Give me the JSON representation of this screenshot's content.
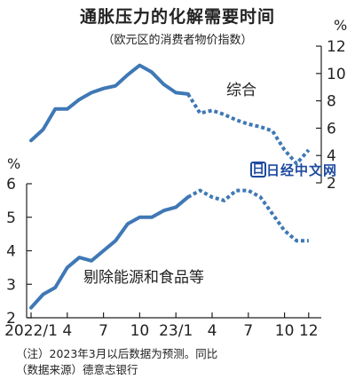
{
  "title": "通胀压力的化解需要时间",
  "subtitle": "（欧元区的消费者物价指数）",
  "notes": [
    "（注）2023年3月以后数据为预测。同比",
    "（数据来源）德意志银行"
  ],
  "watermark": {
    "text": "日经中文网",
    "icon": "日"
  },
  "colors": {
    "series": "#3f78b5",
    "axis": "#222222"
  },
  "chart_data": [
    {
      "type": "line",
      "ylabel": "%",
      "ylim": [
        2,
        12
      ],
      "yticks": [
        2,
        4,
        6,
        8,
        10,
        12
      ],
      "y_axis_side": "right",
      "grid": false,
      "series": [
        {
          "name": "综合",
          "actual": [
            {
              "x": "2022/1",
              "y": 5.1
            },
            {
              "x": "2022/2",
              "y": 5.9
            },
            {
              "x": "2022/3",
              "y": 7.4
            },
            {
              "x": "2022/4",
              "y": 7.4
            },
            {
              "x": "2022/5",
              "y": 8.1
            },
            {
              "x": "2022/6",
              "y": 8.6
            },
            {
              "x": "2022/7",
              "y": 8.9
            },
            {
              "x": "2022/8",
              "y": 9.1
            },
            {
              "x": "2022/9",
              "y": 9.9
            },
            {
              "x": "2022/10",
              "y": 10.6
            },
            {
              "x": "2022/11",
              "y": 10.1
            },
            {
              "x": "2022/12",
              "y": 9.2
            },
            {
              "x": "2023/1",
              "y": 8.6
            },
            {
              "x": "2023/2",
              "y": 8.5
            }
          ],
          "forecast": [
            {
              "x": "2023/2",
              "y": 8.5
            },
            {
              "x": "2023/3",
              "y": 7.1
            },
            {
              "x": "2023/4",
              "y": 7.3
            },
            {
              "x": "2023/5",
              "y": 7.0
            },
            {
              "x": "2023/6",
              "y": 6.6
            },
            {
              "x": "2023/7",
              "y": 6.3
            },
            {
              "x": "2023/8",
              "y": 6.1
            },
            {
              "x": "2023/9",
              "y": 5.8
            },
            {
              "x": "2023/10",
              "y": 4.4
            },
            {
              "x": "2023/11",
              "y": 3.4
            },
            {
              "x": "2023/12",
              "y": 4.4
            }
          ]
        }
      ]
    },
    {
      "type": "line",
      "ylabel": "%",
      "ylim": [
        2,
        6
      ],
      "yticks": [
        2,
        3,
        4,
        5,
        6
      ],
      "y_axis_side": "left",
      "grid": false,
      "xticks": [
        "2022/1",
        "4",
        "7",
        "10",
        "23/1",
        "4",
        "7",
        "10",
        "12"
      ],
      "series": [
        {
          "name": "剔除能源和食品等",
          "actual": [
            {
              "x": "2022/1",
              "y": 2.3
            },
            {
              "x": "2022/2",
              "y": 2.7
            },
            {
              "x": "2022/3",
              "y": 2.9
            },
            {
              "x": "2022/4",
              "y": 3.5
            },
            {
              "x": "2022/5",
              "y": 3.8
            },
            {
              "x": "2022/6",
              "y": 3.7
            },
            {
              "x": "2022/7",
              "y": 4.0
            },
            {
              "x": "2022/8",
              "y": 4.3
            },
            {
              "x": "2022/9",
              "y": 4.8
            },
            {
              "x": "2022/10",
              "y": 5.0
            },
            {
              "x": "2022/11",
              "y": 5.0
            },
            {
              "x": "2022/12",
              "y": 5.2
            },
            {
              "x": "2023/1",
              "y": 5.3
            },
            {
              "x": "2023/2",
              "y": 5.6
            }
          ],
          "forecast": [
            {
              "x": "2023/2",
              "y": 5.6
            },
            {
              "x": "2023/3",
              "y": 5.8
            },
            {
              "x": "2023/4",
              "y": 5.6
            },
            {
              "x": "2023/5",
              "y": 5.5
            },
            {
              "x": "2023/6",
              "y": 5.8
            },
            {
              "x": "2023/7",
              "y": 5.8
            },
            {
              "x": "2023/8",
              "y": 5.6
            },
            {
              "x": "2023/9",
              "y": 5.1
            },
            {
              "x": "2023/10",
              "y": 4.6
            },
            {
              "x": "2023/11",
              "y": 4.3
            },
            {
              "x": "2023/12",
              "y": 4.3
            }
          ]
        }
      ]
    }
  ]
}
